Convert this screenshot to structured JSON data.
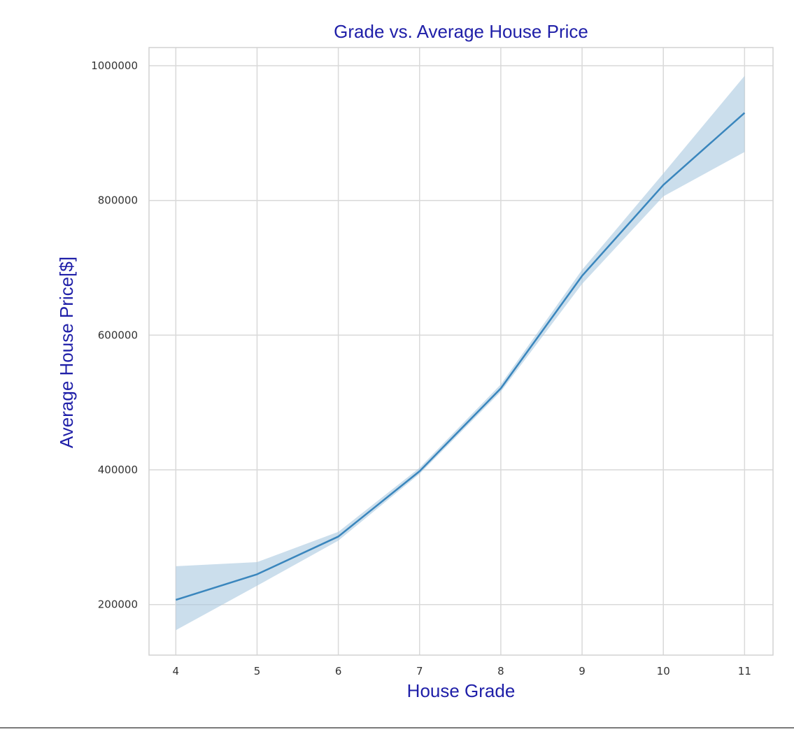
{
  "chart_data": {
    "type": "line",
    "title": "Grade vs. Average House Price",
    "xlabel": "House Grade",
    "ylabel": "Average House Price[$]",
    "x": [
      4,
      5,
      6,
      7,
      8,
      9,
      10,
      11
    ],
    "series": [
      {
        "values": [
          207000,
          245000,
          301000,
          398000,
          521000,
          688000,
          823000,
          930000
        ],
        "ci_lower": [
          162000,
          228000,
          295000,
          394000,
          516000,
          676000,
          806000,
          872000
        ],
        "ci_upper": [
          257000,
          263000,
          308000,
          403000,
          527000,
          697000,
          840000,
          985000
        ],
        "color": "#3a86bd",
        "band_color": "#a9c8e0"
      }
    ],
    "xticks": [
      "4",
      "5",
      "6",
      "7",
      "8",
      "9",
      "10",
      "11"
    ],
    "yticks": [
      "200000",
      "400000",
      "600000",
      "800000",
      "1000000"
    ],
    "ytick_values": [
      200000,
      400000,
      600000,
      800000,
      1000000
    ],
    "xlim": [
      3.67,
      11.35
    ],
    "ylim": [
      125000,
      1027000
    ],
    "grid": true,
    "colors": {
      "title": "#1f1fa8",
      "axis_label": "#1f1fa8",
      "grid": "#d9d9d9"
    }
  }
}
